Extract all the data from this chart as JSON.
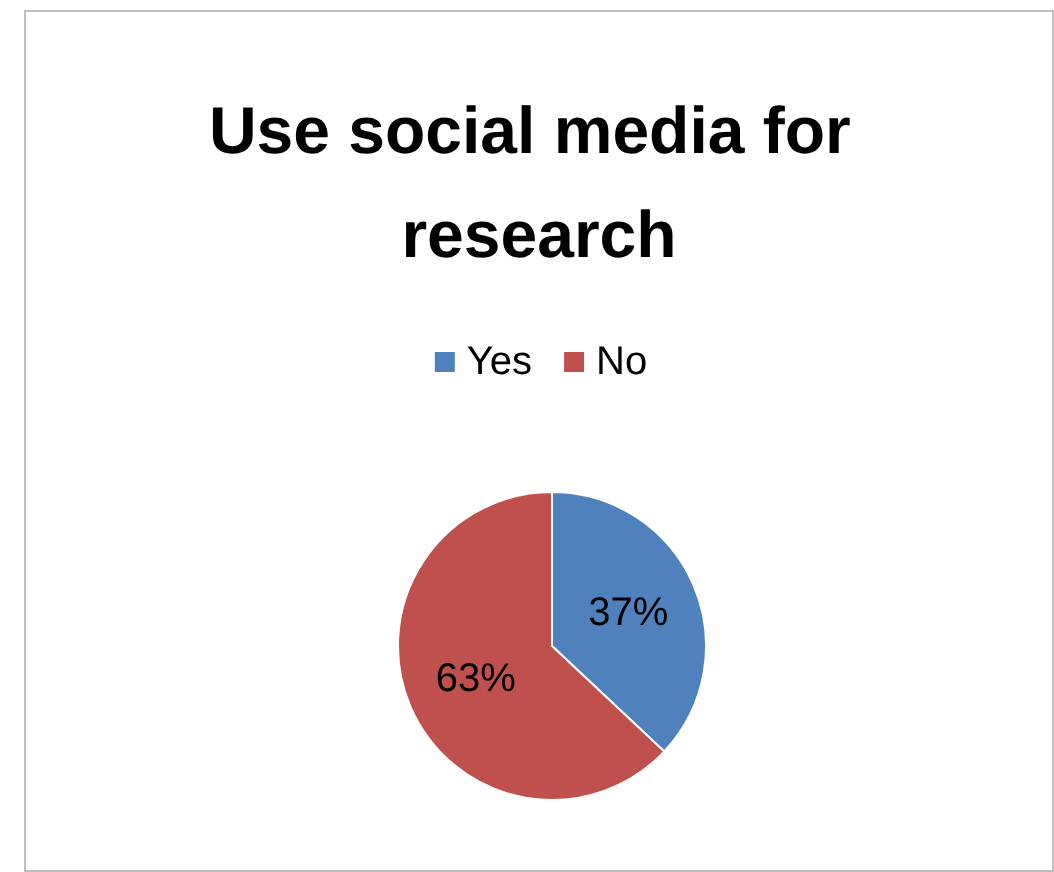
{
  "chart_data": {
    "type": "pie",
    "title": "Use social media for research",
    "categories": [
      "Yes",
      "No"
    ],
    "values": [
      37,
      63
    ],
    "colors": [
      "#4f81bd",
      "#c0504d"
    ],
    "value_labels": [
      "37%",
      "63%"
    ],
    "legend": "top"
  }
}
